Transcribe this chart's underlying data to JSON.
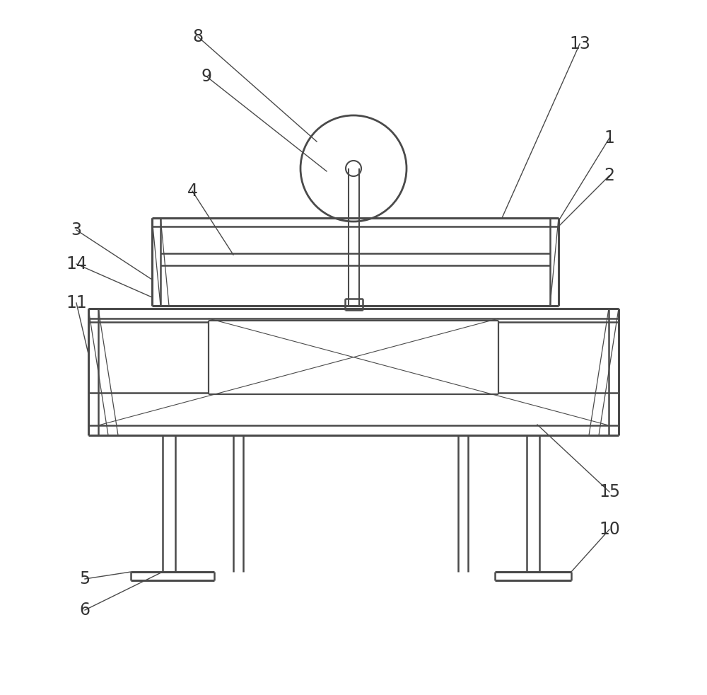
{
  "bg_color": "#ffffff",
  "line_color": "#4a4a4a",
  "line_width": 1.8,
  "label_fontsize": 17,
  "figsize": [
    10.0,
    9.82
  ],
  "dpi": 100
}
